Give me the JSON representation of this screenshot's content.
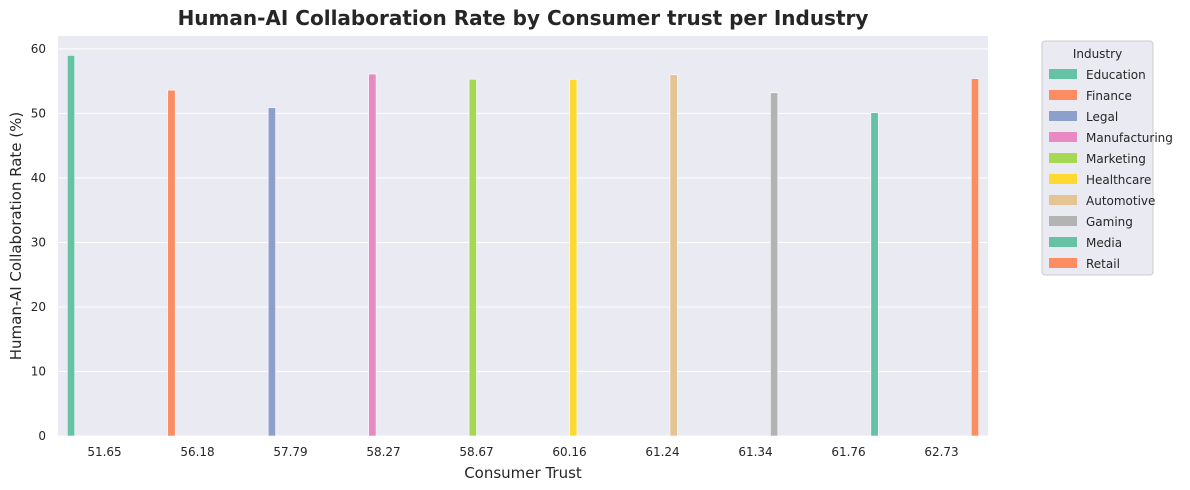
{
  "chart_data": {
    "type": "bar",
    "title": "Human-AI Collaboration Rate by Consumer trust per Industry",
    "xlabel": "Consumer Trust",
    "ylabel": "Human-AI Collaboration Rate (%)",
    "categories": [
      "51.65",
      "56.18",
      "57.79",
      "58.27",
      "58.67",
      "60.16",
      "61.24",
      "61.34",
      "61.76",
      "62.73"
    ],
    "ylim": [
      0,
      62
    ],
    "yticks": [
      0,
      10,
      20,
      30,
      40,
      50,
      60
    ],
    "grid": true,
    "legend_position": "outside-top-right",
    "legend_title": "Industry",
    "series": [
      {
        "name": "Education",
        "color": "#66c2a5",
        "values": [
          59.0,
          null,
          null,
          null,
          null,
          null,
          null,
          null,
          null,
          null
        ]
      },
      {
        "name": "Finance",
        "color": "#fc8d62",
        "values": [
          null,
          53.6,
          null,
          null,
          null,
          null,
          null,
          null,
          null,
          null
        ]
      },
      {
        "name": "Legal",
        "color": "#8da0cb",
        "values": [
          null,
          null,
          50.9,
          null,
          null,
          null,
          null,
          null,
          null,
          null
        ]
      },
      {
        "name": "Manufacturing",
        "color": "#e78ac3",
        "values": [
          null,
          null,
          null,
          56.1,
          null,
          null,
          null,
          null,
          null,
          null
        ]
      },
      {
        "name": "Marketing",
        "color": "#a6d854",
        "values": [
          null,
          null,
          null,
          null,
          55.3,
          null,
          null,
          null,
          null,
          null
        ]
      },
      {
        "name": "Healthcare",
        "color": "#ffd92f",
        "values": [
          null,
          null,
          null,
          null,
          null,
          55.3,
          null,
          null,
          null,
          null
        ]
      },
      {
        "name": "Automotive",
        "color": "#e5c494",
        "values": [
          null,
          null,
          null,
          null,
          null,
          null,
          56.0,
          null,
          null,
          null
        ]
      },
      {
        "name": "Gaming",
        "color": "#b3b3b3",
        "values": [
          null,
          null,
          null,
          null,
          null,
          null,
          null,
          53.2,
          null,
          null
        ]
      },
      {
        "name": "Media",
        "color": "#66c2a5",
        "values": [
          null,
          null,
          null,
          null,
          null,
          null,
          null,
          null,
          50.1,
          null
        ]
      },
      {
        "name": "Retail",
        "color": "#fc8d62",
        "values": [
          null,
          null,
          null,
          null,
          null,
          null,
          null,
          null,
          null,
          55.4
        ]
      }
    ]
  }
}
